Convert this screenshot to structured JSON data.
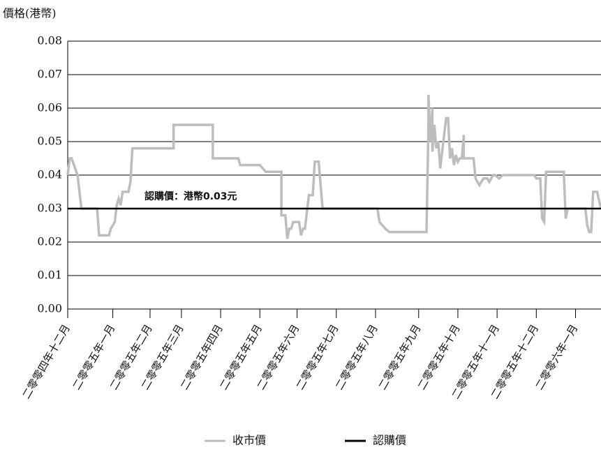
{
  "chart_data": {
    "type": "line",
    "y_label": "價格(港幣)",
    "annotation": "認購價：港幣0.03元",
    "ylim": [
      0,
      0.08
    ],
    "yticks": [
      {
        "value": 0,
        "label": "0.00"
      },
      0.01,
      0.02,
      0.03,
      0.04,
      0.05,
      0.06,
      0.07,
      0.08
    ],
    "xlim": [
      0,
      272
    ],
    "xticks": [
      {
        "value": 0,
        "label": "二零零四年十二月"
      },
      {
        "value": 23,
        "label": "二零零五年一月"
      },
      {
        "value": 42,
        "label": "二零零五年二月"
      },
      {
        "value": 58,
        "label": "二零零五年三月"
      },
      {
        "value": 78,
        "label": "二零零五年四月"
      },
      {
        "value": 98,
        "label": "二零零五年五月"
      },
      {
        "value": 117,
        "label": "二零零五年六月"
      },
      {
        "value": 137,
        "label": "二零零五年七月"
      },
      {
        "value": 157,
        "label": "二零零五年八月"
      },
      {
        "value": 179,
        "label": "二零零五年九月"
      },
      {
        "value": 199,
        "label": "二零零五年十月"
      },
      {
        "value": 219,
        "label": "二零零五年十一月"
      },
      {
        "value": 239,
        "label": "二零零五年十二月"
      },
      {
        "value": 259,
        "label": "二零零六年一月"
      }
    ],
    "grid": true,
    "legend": "bottom",
    "series": [
      {
        "name": "收市價",
        "color": "#bdbdbd",
        "x": [
          0,
          1,
          2,
          5,
          7,
          15,
          16,
          21,
          22,
          24,
          25,
          26,
          27,
          28,
          31,
          32,
          33,
          54,
          54,
          74,
          74,
          87,
          88,
          98,
          101,
          109,
          109,
          111,
          112,
          113,
          114,
          115,
          118,
          119,
          120,
          121,
          123,
          125,
          126,
          128,
          130,
          158,
          159,
          162,
          164,
          183,
          184,
          184,
          185,
          186,
          186,
          187,
          188,
          189,
          190,
          191,
          193,
          194,
          195,
          196,
          197,
          198,
          199,
          200,
          201,
          202,
          202,
          207,
          208,
          210,
          212,
          214,
          215,
          217,
          218,
          220,
          222,
          238,
          239,
          241,
          242,
          243,
          244,
          253,
          254,
          255,
          264,
          265,
          266,
          267,
          268,
          270,
          272
        ],
        "values": [
          0.04,
          0.045,
          0.045,
          0.04,
          0.03,
          0.03,
          0.022,
          0.022,
          0.024,
          0.026,
          0.031,
          0.033,
          0.031,
          0.035,
          0.035,
          0.038,
          0.048,
          0.048,
          0.055,
          0.055,
          0.045,
          0.045,
          0.043,
          0.043,
          0.041,
          0.041,
          0.028,
          0.028,
          0.021,
          0.024,
          0.024,
          0.026,
          0.026,
          0.022,
          0.024,
          0.024,
          0.034,
          0.034,
          0.044,
          0.044,
          0.03,
          0.03,
          0.026,
          0.024,
          0.023,
          0.023,
          0.055,
          0.064,
          0.05,
          0.06,
          0.047,
          0.055,
          0.048,
          0.05,
          0.042,
          0.047,
          0.057,
          0.057,
          0.045,
          0.048,
          0.043,
          0.046,
          0.044,
          0.045,
          0.045,
          0.052,
          0.045,
          0.045,
          0.039,
          0.037,
          0.039,
          0.039,
          0.038,
          0.04,
          0.04,
          0.039,
          0.04,
          0.04,
          0.039,
          0.039,
          0.027,
          0.026,
          0.041,
          0.041,
          0.027,
          0.03,
          0.03,
          0.025,
          0.023,
          0.023,
          0.035,
          0.035,
          0.03
        ]
      },
      {
        "name": "認購價",
        "color": "#000000",
        "x": [
          0,
          272
        ],
        "values": [
          0.03,
          0.03
        ]
      }
    ]
  }
}
